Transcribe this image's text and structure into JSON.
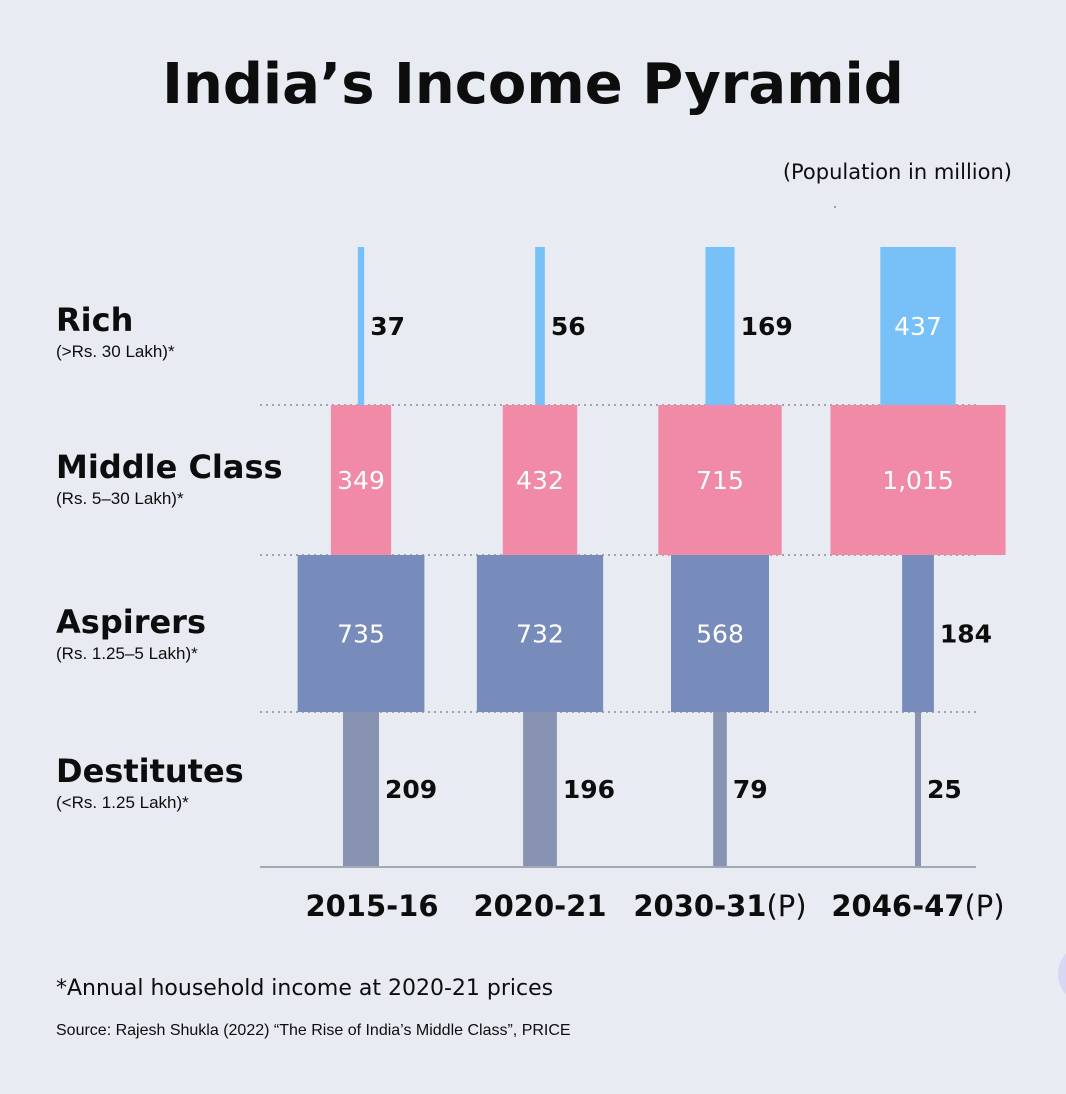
{
  "title": "India’s Income Pyramid",
  "unit_note": "(Population in million)",
  "footnote": "*Annual household income at 2020-21 prices",
  "source": "Source:  Rajesh Shukla (2022) “The Rise of India’s Middle Class”, PRICE",
  "rows": [
    {
      "name": "Rich",
      "sub": "(>Rs. 30 Lakh)*"
    },
    {
      "name": "Middle Class",
      "sub": "(Rs. 5–30 Lakh)*"
    },
    {
      "name": "Aspirers",
      "sub": "(Rs. 1.25–5 Lakh)*"
    },
    {
      "name": "Destitutes",
      "sub": "(<Rs. 1.25 Lakh)*"
    }
  ],
  "chart_data": {
    "type": "bar",
    "title": "India’s Income Pyramid",
    "unit": "Population in million",
    "categories": [
      "2015-16",
      "2020-21",
      "2030-31",
      "2046-47"
    ],
    "category_suffixes": [
      "",
      "",
      "(P)",
      "(P)"
    ],
    "series": [
      {
        "name": "Rich",
        "values": [
          37,
          56,
          169,
          437
        ],
        "labels": [
          "37",
          "56",
          "169",
          "437"
        ],
        "color": "#78c1f8"
      },
      {
        "name": "Middle Class",
        "values": [
          349,
          432,
          715,
          1015
        ],
        "labels": [
          "349",
          "432",
          "715",
          "1,015"
        ],
        "color": "#f08aa6"
      },
      {
        "name": "Aspirers",
        "values": [
          735,
          732,
          568,
          184
        ],
        "labels": [
          "735",
          "732",
          "568",
          "184"
        ],
        "color": "#778cbb"
      },
      {
        "name": "Destitutes",
        "values": [
          209,
          196,
          79,
          25
        ],
        "labels": [
          "209",
          "196",
          "79",
          "25"
        ],
        "color": "#8793b0"
      }
    ]
  }
}
